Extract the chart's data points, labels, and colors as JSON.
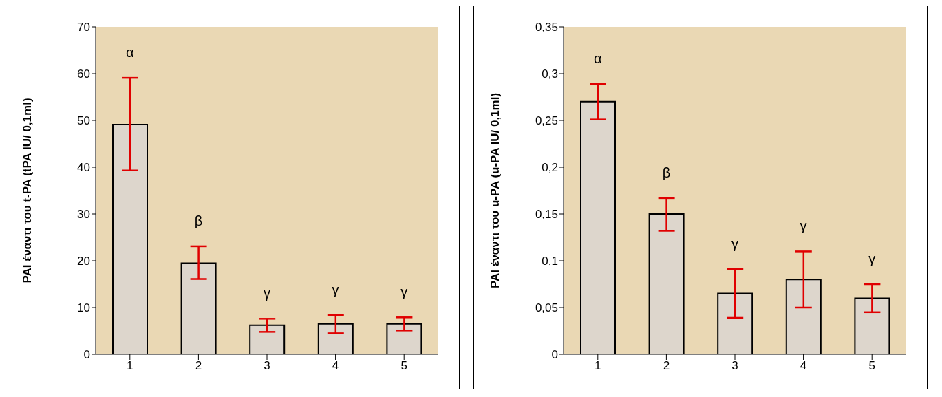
{
  "chart_data": [
    {
      "type": "bar",
      "ylabel": "PAI έναντι του t-PA (tPA IU/ 0,1ml)",
      "categories": [
        "1",
        "2",
        "3",
        "4",
        "5"
      ],
      "values": [
        49.1,
        19.5,
        6.2,
        6.5,
        6.5
      ],
      "color": "#ddd6cc",
      "errors": [
        [
          39.3,
          59.1
        ],
        [
          16.1,
          23.1
        ],
        [
          4.8,
          7.6
        ],
        [
          4.5,
          8.4
        ],
        [
          5.1,
          7.9
        ]
      ],
      "ylim": [
        0,
        70
      ],
      "yticks": [
        0,
        10,
        20,
        30,
        40,
        50,
        60,
        70
      ],
      "grid": false,
      "legend": false,
      "annotations": [
        "α",
        "β",
        "γ",
        "γ",
        "γ"
      ]
    },
    {
      "type": "bar",
      "ylabel": "PAI έναντι του u-PA (u-PA IU/ 0,1ml)",
      "categories": [
        "1",
        "2",
        "3",
        "4",
        "5"
      ],
      "values": [
        0.27,
        0.15,
        0.065,
        0.08,
        0.06
      ],
      "color": "#ddd6cc",
      "errors": [
        [
          0.251,
          0.289
        ],
        [
          0.132,
          0.167
        ],
        [
          0.039,
          0.091
        ],
        [
          0.05,
          0.11
        ],
        [
          0.045,
          0.075
        ]
      ],
      "ylim": [
        0,
        0.35
      ],
      "yticks": [
        0,
        {
          "value": 0.05,
          "label": "0,05"
        },
        {
          "value": 0.1,
          "label": "0,1"
        },
        {
          "value": 0.15,
          "label": "0,15"
        },
        {
          "value": 0.2,
          "label": "0,2"
        },
        {
          "value": 0.25,
          "label": "0,25"
        },
        {
          "value": 0.3,
          "label": "0,3"
        },
        {
          "value": 0.35,
          "label": "0,35"
        }
      ],
      "grid": false,
      "legend": false,
      "annotations": [
        "α",
        "β",
        "γ",
        "γ",
        "γ"
      ]
    }
  ]
}
